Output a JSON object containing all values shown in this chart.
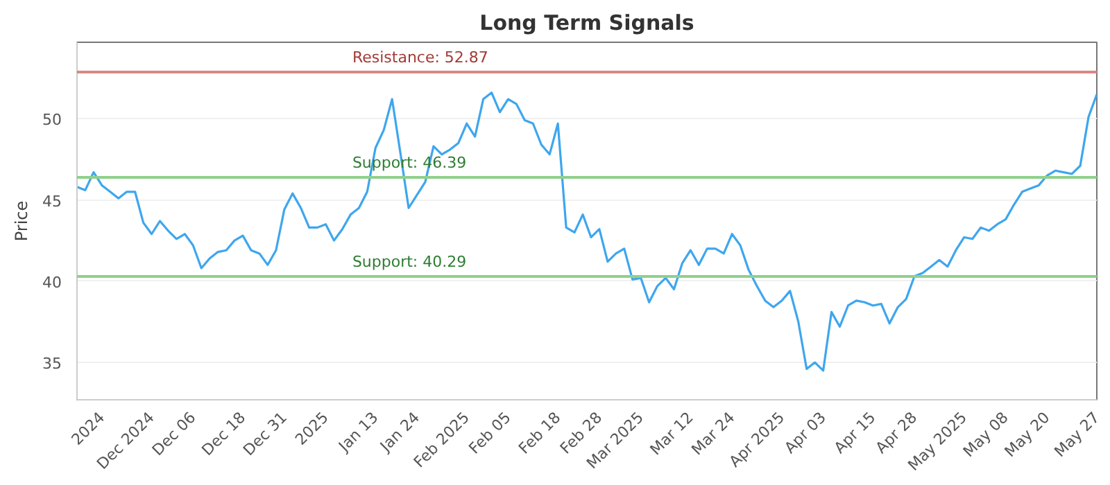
{
  "chart_data": {
    "type": "line",
    "title": "Long Term Signals",
    "ylabel": "Price",
    "categories": [
      null,
      null,
      null,
      "2024",
      null,
      null,
      null,
      null,
      null,
      "Dec 2024",
      null,
      null,
      null,
      null,
      "Dec 06",
      null,
      null,
      null,
      null,
      null,
      "Dec 18",
      null,
      null,
      null,
      null,
      "Dec 31",
      null,
      null,
      null,
      null,
      "2025",
      null,
      null,
      null,
      null,
      null,
      "Jan 13",
      null,
      null,
      null,
      null,
      "Jan 24",
      null,
      null,
      null,
      null,
      null,
      "Feb 2025",
      null,
      null,
      null,
      null,
      "Feb 05",
      null,
      null,
      null,
      null,
      null,
      "Feb 18",
      null,
      null,
      null,
      null,
      "Feb 28",
      null,
      null,
      null,
      null,
      "Mar 2025",
      null,
      null,
      null,
      null,
      null,
      "Mar 12",
      null,
      null,
      null,
      null,
      "Mar 24",
      null,
      null,
      null,
      null,
      null,
      "Apr 2025",
      null,
      null,
      null,
      null,
      "Apr 03",
      null,
      null,
      null,
      null,
      null,
      "Apr 15",
      null,
      null,
      null,
      null,
      "Apr 28",
      null,
      null,
      null,
      null,
      null,
      "May 2025",
      null,
      null,
      null,
      null,
      "May 08",
      null,
      null,
      null,
      null,
      "May 20",
      null,
      null,
      null,
      null,
      null,
      "May 27"
    ],
    "series": [
      {
        "color": "#3ea6ee",
        "values": [
          45.8,
          45.6,
          46.7,
          45.9,
          45.5,
          45.1,
          45.5,
          45.5,
          43.6,
          42.9,
          43.7,
          43.1,
          42.6,
          42.9,
          42.2,
          40.8,
          41.4,
          41.8,
          41.9,
          42.5,
          42.8,
          41.9,
          41.7,
          41.0,
          41.9,
          44.4,
          45.4,
          44.5,
          43.3,
          43.3,
          43.5,
          42.5,
          43.2,
          44.1,
          44.5,
          45.5,
          48.2,
          49.3,
          51.2,
          47.9,
          44.5,
          45.3,
          46.1,
          48.3,
          47.8,
          48.1,
          48.5,
          49.7,
          48.9,
          51.2,
          51.6,
          50.4,
          51.2,
          50.9,
          49.9,
          49.7,
          48.4,
          47.8,
          49.7,
          43.3,
          43.0,
          44.1,
          42.7,
          43.2,
          41.2,
          41.7,
          42.0,
          40.1,
          40.2,
          38.7,
          39.7,
          40.2,
          39.5,
          41.1,
          41.9,
          41.0,
          42.0,
          42.0,
          41.7,
          42.9,
          42.2,
          40.7,
          39.7,
          38.8,
          38.4,
          38.8,
          39.4,
          37.5,
          34.6,
          35.0,
          34.5,
          38.1,
          37.2,
          38.5,
          38.8,
          38.7,
          38.5,
          38.6,
          37.4,
          38.4,
          38.9,
          40.3,
          40.5,
          40.9,
          41.3,
          40.9,
          41.9,
          42.7,
          42.6,
          43.3,
          43.1,
          43.5,
          43.8,
          44.7,
          45.5,
          45.7,
          45.9,
          46.5,
          46.8,
          46.7,
          46.6,
          47.1,
          50.1,
          51.5
        ]
      }
    ],
    "ylim": [
      32.7,
      54.7
    ],
    "yticks": [
      35,
      40,
      45,
      50
    ],
    "ref_lines": [
      {
        "axis": "y",
        "value": 52.87,
        "label": "Resistance: 52.87",
        "color": "#d98884"
      },
      {
        "axis": "y",
        "value": 46.39,
        "label": "Support: 46.39",
        "color": "#8fd18b"
      },
      {
        "axis": "y",
        "value": 40.29,
        "label": "Support: 40.29",
        "color": "#8fd18b"
      }
    ],
    "grid": "y",
    "marker": "none",
    "line_style": "solid"
  }
}
